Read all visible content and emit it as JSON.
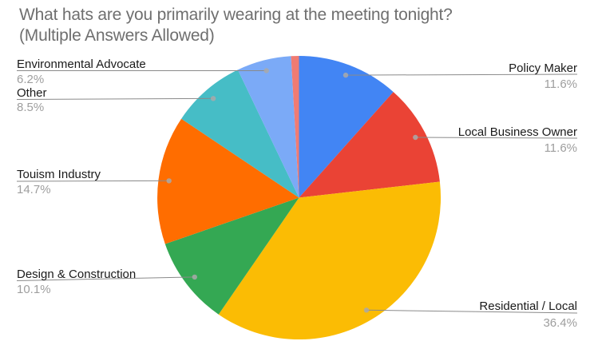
{
  "chart_data": {
    "type": "pie",
    "title": "What hats are you primarily wearing at the meeting tonight? (Multiple Answers Allowed)",
    "title_lines": [
      "What hats are you primarily wearing at the meeting tonight?",
      "(Multiple Answers Allowed)"
    ],
    "background": "#ffffff",
    "legend_position": "labeled",
    "slices": [
      {
        "label": "Policy Maker",
        "pct": 11.6,
        "color": "#4285F4"
      },
      {
        "label": "Local Business Owner",
        "pct": 11.6,
        "color": "#EA4335"
      },
      {
        "label": "Residential / Local",
        "pct": 36.4,
        "color": "#FBBC04"
      },
      {
        "label": "Design & Construction",
        "pct": 10.1,
        "color": "#34A853"
      },
      {
        "label": "Touism Industry",
        "pct": 14.7,
        "color": "#FF6D00"
      },
      {
        "label": "Other",
        "pct": 8.5,
        "color": "#46BDC6"
      },
      {
        "label": "Environmental Advocate",
        "pct": 6.2,
        "color": "#7BAAF7"
      },
      {
        "label": "",
        "pct": 0.9,
        "color": "#F07B72"
      }
    ],
    "style": {
      "title_color": "#6f6f6f",
      "label_color": "#1a1a1a",
      "pct_color": "#9e9e9e",
      "leader_line_color": "#8a8a8a",
      "leader_dot_color": "#a9a9a9"
    }
  }
}
